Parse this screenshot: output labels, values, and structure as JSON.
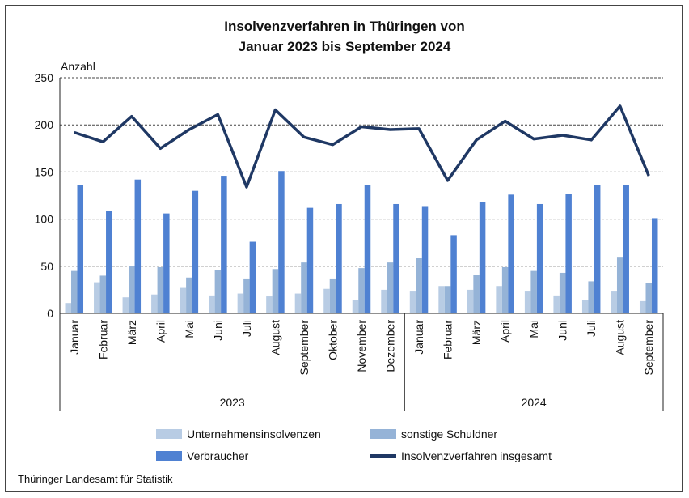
{
  "chart_data": {
    "type": "bar",
    "title": "Insolvenzverfahren in Thüringen von",
    "subtitle": "Januar 2023 bis September 2024",
    "ylabel": "Anzahl",
    "ylim": [
      0,
      250
    ],
    "yticks": [
      "0",
      "50",
      "100",
      "150",
      "200",
      "250"
    ],
    "grid": true,
    "legend_position": "bottom",
    "categories": [
      "Januar",
      "Februar",
      "März",
      "April",
      "Mai",
      "Juni",
      "Juli",
      "August",
      "September",
      "Oktober",
      "November",
      "Dezember",
      "Januar",
      "Februar",
      "März",
      "April",
      "Mai",
      "Juni",
      "Juli",
      "August",
      "September"
    ],
    "groups": [
      {
        "label": "2023",
        "count": 12
      },
      {
        "label": "2024",
        "count": 9
      }
    ],
    "series": [
      {
        "name": "Unternehmensinsolvenzen",
        "type": "bar",
        "color": "#b8cce4",
        "values": [
          11,
          33,
          17,
          20,
          27,
          19,
          21,
          18,
          21,
          26,
          14,
          25,
          24,
          29,
          25,
          29,
          24,
          19,
          14,
          24,
          13
        ]
      },
      {
        "name": "sonstige Schuldner",
        "type": "bar",
        "color": "#95b3d7",
        "values": [
          45,
          40,
          50,
          49,
          38,
          46,
          37,
          47,
          54,
          37,
          48,
          54,
          59,
          29,
          41,
          49,
          45,
          43,
          34,
          60,
          32
        ]
      },
      {
        "name": "Verbraucher",
        "type": "bar",
        "color": "#4f81d2",
        "values": [
          136,
          109,
          142,
          106,
          130,
          146,
          76,
          151,
          112,
          116,
          136,
          116,
          113,
          83,
          118,
          126,
          116,
          127,
          136,
          136,
          101
        ]
      },
      {
        "name": "Insolvenzverfahren insgesamt",
        "type": "line",
        "color": "#1f3864",
        "values": [
          192,
          182,
          209,
          175,
          195,
          211,
          134,
          216,
          187,
          179,
          198,
          195,
          196,
          141,
          184,
          204,
          185,
          189,
          184,
          220,
          146
        ]
      }
    ]
  },
  "source": "Thüringer Landesamt für Statistik"
}
